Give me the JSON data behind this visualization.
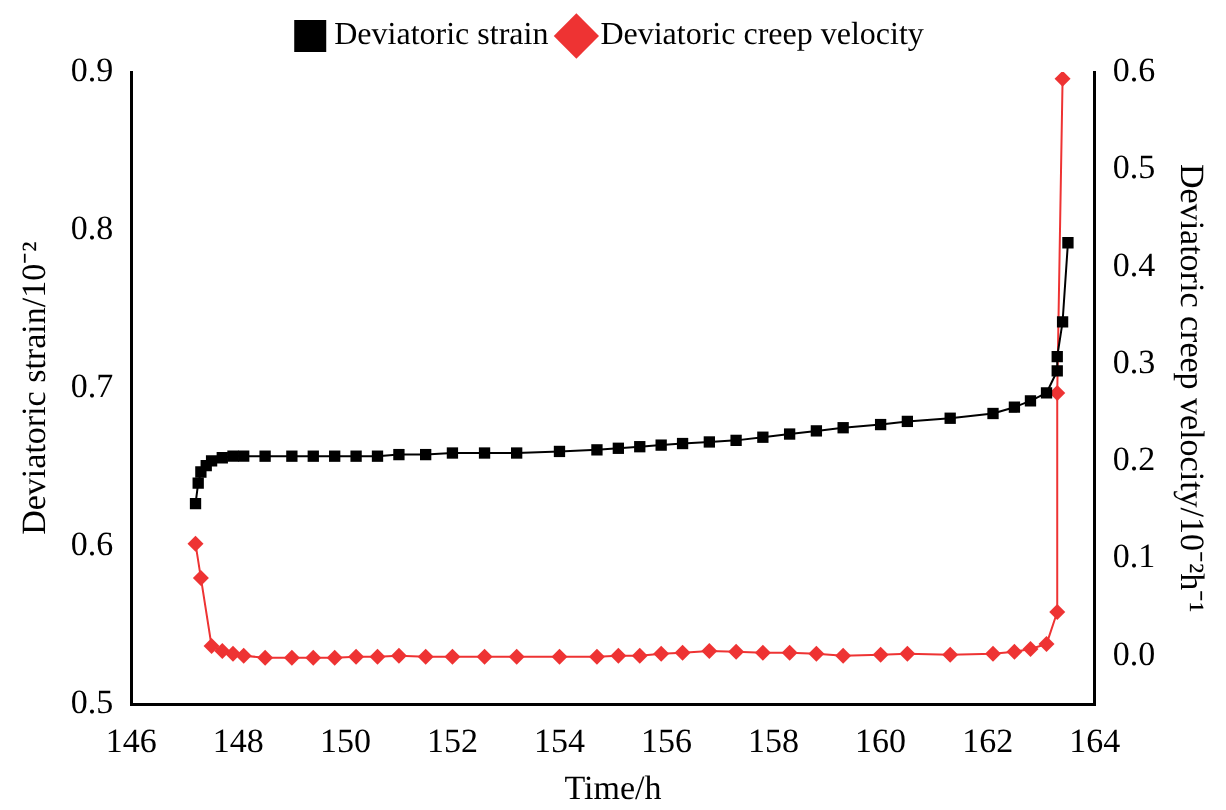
{
  "chart_data": {
    "type": "line",
    "xlabel": "Time/h",
    "ylabel": "Deviatoric strain/10⁻²",
    "y2label": "Deviatoric creep velocity/10⁻²h⁻¹",
    "xlim": [
      146,
      164
    ],
    "xticks": [
      146,
      148,
      150,
      152,
      154,
      156,
      158,
      160,
      162,
      164
    ],
    "ylim": [
      0.5,
      0.9
    ],
    "yticks": [
      0.5,
      0.6,
      0.7,
      0.8,
      0.9
    ],
    "y2lim": [
      -0.05,
      0.6
    ],
    "y2ticks": [
      {
        "value": 0,
        "label": "0.0"
      },
      0.1,
      0.2,
      0.3,
      0.4,
      0.5,
      0.6
    ],
    "grid": false,
    "legend": "top",
    "series": [
      {
        "name": "Deviatoric strain",
        "color": "#000000",
        "marker": "square",
        "x": [
          147.2,
          147.25,
          147.3,
          147.4,
          147.5,
          147.7,
          147.9,
          148.1,
          148.5,
          149.0,
          149.4,
          149.8,
          150.2,
          150.6,
          151.0,
          151.5,
          152.0,
          152.6,
          153.2,
          154.0,
          154.7,
          155.1,
          155.5,
          155.9,
          156.3,
          156.8,
          157.3,
          157.8,
          158.3,
          158.8,
          159.3,
          160.0,
          160.5,
          161.3,
          162.1,
          162.5,
          162.8,
          163.1,
          163.3,
          163.3,
          163.4,
          163.5
        ],
        "values": [
          0.627,
          0.64,
          0.647,
          0.651,
          0.654,
          0.656,
          0.657,
          0.657,
          0.657,
          0.657,
          0.657,
          0.657,
          0.657,
          0.657,
          0.658,
          0.658,
          0.659,
          0.659,
          0.659,
          0.66,
          0.661,
          0.662,
          0.663,
          0.664,
          0.665,
          0.666,
          0.667,
          0.669,
          0.671,
          0.673,
          0.675,
          0.677,
          0.679,
          0.681,
          0.684,
          0.688,
          0.692,
          0.697,
          0.711,
          0.72,
          0.742,
          0.792
        ]
      },
      {
        "name": "Deviatoric creep velocity",
        "color": "#ee3333",
        "marker": "diamond",
        "axis": "y2",
        "x": [
          147.2,
          147.3,
          147.5,
          147.7,
          147.9,
          148.1,
          148.5,
          149.0,
          149.4,
          149.8,
          150.2,
          150.6,
          151.0,
          151.5,
          152.0,
          152.6,
          153.2,
          154.0,
          154.7,
          155.1,
          155.5,
          155.9,
          156.3,
          156.8,
          157.3,
          157.8,
          158.3,
          158.8,
          159.3,
          160.0,
          160.5,
          161.3,
          162.1,
          162.5,
          162.8,
          163.1,
          163.3,
          163.3,
          163.4
        ],
        "values": [
          0.115,
          0.08,
          0.01,
          0.005,
          0.002,
          0.0,
          -0.002,
          -0.002,
          -0.002,
          -0.002,
          -0.001,
          -0.001,
          0.0,
          -0.001,
          -0.001,
          -0.001,
          -0.001,
          -0.001,
          -0.001,
          0.0,
          0.0,
          0.002,
          0.003,
          0.005,
          0.004,
          0.003,
          0.003,
          0.002,
          0.0,
          0.001,
          0.002,
          0.001,
          0.002,
          0.004,
          0.007,
          0.012,
          0.045,
          0.27,
          0.593
        ]
      }
    ]
  }
}
